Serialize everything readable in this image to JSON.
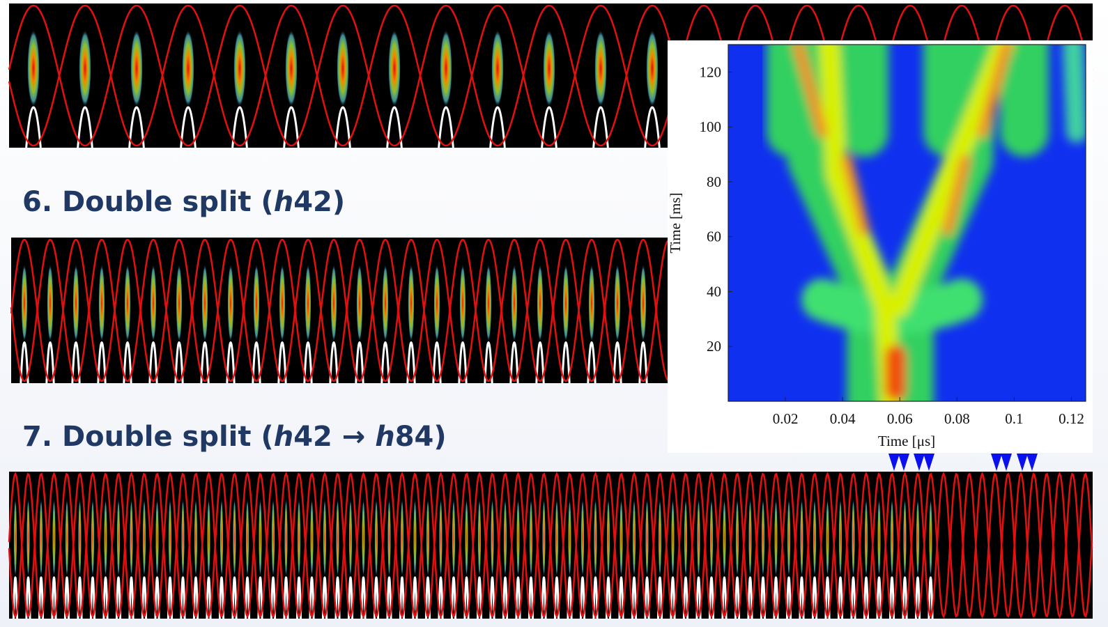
{
  "headings": [
    {
      "parts": [
        "6. Double split (",
        "h",
        "42)"
      ]
    },
    {
      "parts": [
        "7. Double split (",
        "h",
        "42 → ",
        "h",
        "84)"
      ]
    }
  ],
  "chart_data": {
    "type": "heatmap",
    "xlabel": "Time [μs]",
    "ylabel": "Time [ms]",
    "xlim": [
      0,
      0.125
    ],
    "xticks": [
      0.02,
      0.04,
      0.06,
      0.08,
      0.1,
      0.12
    ],
    "ylim": [
      0,
      130
    ],
    "yticks": [
      20,
      40,
      60,
      80,
      100,
      120
    ]
  }
}
